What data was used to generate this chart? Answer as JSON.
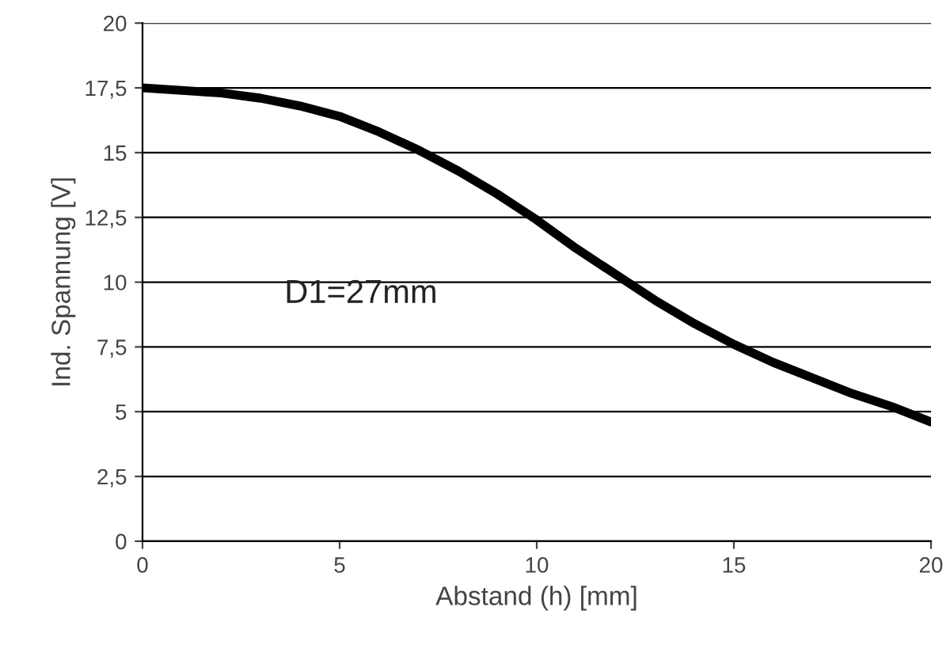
{
  "chart_data": {
    "type": "line",
    "xlabel": "Abstand (h) [mm]",
    "ylabel": "Ind. Spannung [V]",
    "x": [
      0,
      1,
      2,
      3,
      4,
      5,
      6,
      7,
      8,
      9,
      10,
      11,
      12,
      13,
      14,
      15,
      16,
      17,
      18,
      19,
      20
    ],
    "series": [
      {
        "color": "#000000",
        "values": [
          17.5,
          17.4,
          17.3,
          17.1,
          16.8,
          16.4,
          15.8,
          15.1,
          14.3,
          13.4,
          12.4,
          11.3,
          10.3,
          9.3,
          8.4,
          7.6,
          6.9,
          6.3,
          5.7,
          5.2,
          4.6
        ]
      }
    ],
    "xlim": [
      0,
      20
    ],
    "ylim": [
      0,
      20
    ],
    "xticks": [
      0,
      5,
      10,
      15,
      20
    ],
    "yticks": [
      0,
      {
        "value": 2.5,
        "label": "2,5"
      },
      5,
      {
        "value": 7.5,
        "label": "7,5"
      },
      10,
      {
        "value": 12.5,
        "label": "12,5"
      },
      15,
      {
        "value": 17.5,
        "label": "17,5"
      },
      20
    ],
    "grid": "y",
    "marker": "none",
    "line_style": "solid",
    "annotations": [
      "D1=27mm"
    ]
  }
}
